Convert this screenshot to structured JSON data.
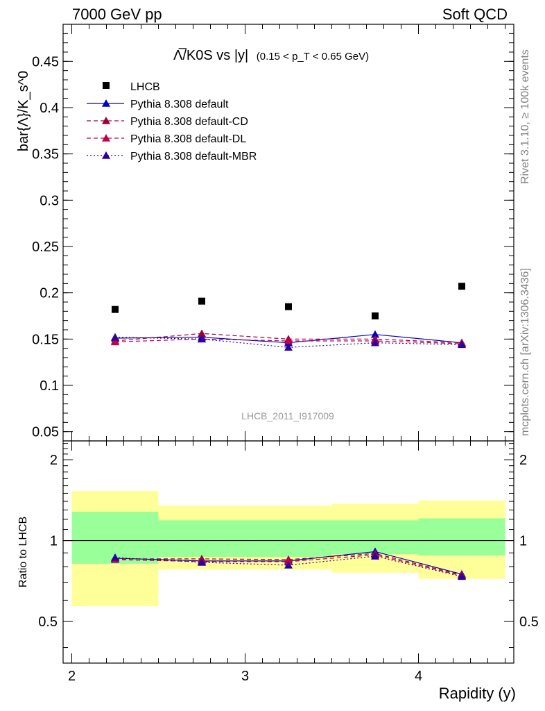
{
  "header": {
    "left": "7000 GeV pp",
    "right": "Soft QCD"
  },
  "side_labels": {
    "rivet": "Rivet 3.1.10, ≥ 100k events",
    "mcplots": "mcplots.cern.ch [arXiv:1306.3436]"
  },
  "colors": {
    "lhcb": "#000000",
    "default": "#0000cc",
    "default_cd": "#a0003a",
    "default_dl": "#c0004a",
    "default_mbr": "#2a00a0",
    "band_inner": "#99ff99",
    "band_outer": "#ffff99"
  },
  "chart_data": [
    {
      "type": "scatter",
      "title": "Λ̅/K0S vs |y|",
      "subtitle": "(0.15 < p_T < 0.65 GeV)",
      "ylabel": "bar{Λ}/K_s^0",
      "watermark": "LHCB_2011_I917009",
      "xlim": [
        1.95,
        4.55
      ],
      "ylim": [
        0.04,
        0.49
      ],
      "yticks": [
        0.05,
        0.1,
        0.15,
        0.2,
        0.25,
        0.3,
        0.35,
        0.4,
        0.45
      ],
      "ytick_labels": [
        "0.05",
        "0.1",
        "0.15",
        "0.2",
        "0.25",
        "0.3",
        "0.35",
        "0.4",
        "0.45"
      ],
      "x": [
        2.25,
        2.75,
        3.25,
        3.75,
        4.25
      ],
      "legend_position": "top-left",
      "series": [
        {
          "name": "LHCB",
          "style": "marker",
          "color_key": "lhcb",
          "values": [
            0.182,
            0.191,
            0.185,
            0.175,
            0.207
          ]
        },
        {
          "name": "Pythia 8.308 default",
          "style": "solid",
          "color_key": "default",
          "values": [
            0.151,
            0.152,
            0.146,
            0.155,
            0.146
          ]
        },
        {
          "name": "Pythia 8.308 default-CD",
          "style": "dashed",
          "color_key": "default_cd",
          "values": [
            0.148,
            0.156,
            0.15,
            0.15,
            0.146
          ]
        },
        {
          "name": "Pythia 8.308 default-DL",
          "style": "dashed",
          "color_key": "default_dl",
          "values": [
            0.147,
            0.15,
            0.148,
            0.148,
            0.145
          ]
        },
        {
          "name": "Pythia 8.308 default-MBR",
          "style": "dotted",
          "color_key": "default_mbr",
          "values": [
            0.152,
            0.15,
            0.141,
            0.146,
            0.144
          ]
        }
      ]
    },
    {
      "type": "line",
      "ylabel": "Ratio to LHCB",
      "xlabel": "Rapidity (y)",
      "xlim": [
        1.95,
        4.55
      ],
      "ylim": [
        0.35,
        2.35
      ],
      "yscale": "log",
      "yticks": [
        0.5,
        1,
        2
      ],
      "ytick_labels": [
        "0.5",
        "1",
        "2"
      ],
      "xticks": [
        2,
        3,
        4
      ],
      "xtick_labels": [
        "2",
        "3",
        "4"
      ],
      "x": [
        2.25,
        2.75,
        3.25,
        3.75,
        4.25
      ],
      "reference_line": 1,
      "bands": [
        {
          "xlo": 2.0,
          "xhi": 2.5,
          "inner": [
            0.82,
            1.28
          ],
          "outer": [
            0.57,
            1.53
          ]
        },
        {
          "xlo": 2.5,
          "xhi": 3.5,
          "inner": [
            0.87,
            1.19
          ],
          "outer": [
            0.78,
            1.35
          ]
        },
        {
          "xlo": 3.5,
          "xhi": 4.0,
          "inner": [
            0.89,
            1.19
          ],
          "outer": [
            0.76,
            1.37
          ]
        },
        {
          "xlo": 4.0,
          "xhi": 4.5,
          "inner": [
            0.88,
            1.21
          ],
          "outer": [
            0.72,
            1.41
          ]
        }
      ],
      "series": [
        {
          "name": "Pythia 8.308 default",
          "style": "solid",
          "color_key": "default",
          "values": [
            0.86,
            0.84,
            0.84,
            0.91,
            0.75
          ]
        },
        {
          "name": "Pythia 8.308 default-CD",
          "style": "dashed",
          "color_key": "default_cd",
          "values": [
            0.855,
            0.855,
            0.85,
            0.895,
            0.745
          ]
        },
        {
          "name": "Pythia 8.308 default-DL",
          "style": "dashed",
          "color_key": "default_dl",
          "values": [
            0.85,
            0.835,
            0.835,
            0.885,
            0.74
          ]
        },
        {
          "name": "Pythia 8.308 default-MBR",
          "style": "dotted",
          "color_key": "default_mbr",
          "values": [
            0.865,
            0.83,
            0.81,
            0.875,
            0.735
          ]
        }
      ]
    }
  ]
}
